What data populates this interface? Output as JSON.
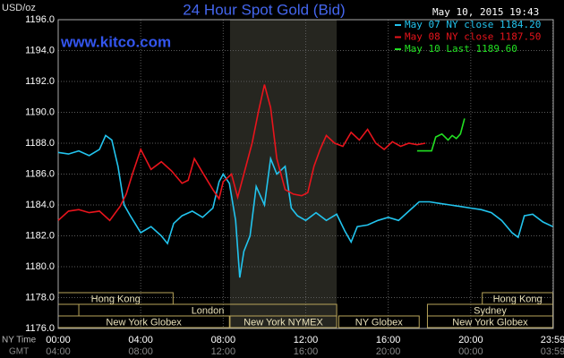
{
  "chart_data": {
    "type": "line",
    "title": "24 Hour Spot Gold (Bid)",
    "watermark": "www.kitco.com",
    "timestamp": "May 10, 2015 19:43",
    "ylabel": "USD/oz",
    "xlabel": "NY Time",
    "x2label": "GMT",
    "xlim": [
      0,
      24
    ],
    "ylim": [
      1176,
      1196
    ],
    "yticks": [
      {
        "value": 1176,
        "label": "1176.0"
      },
      {
        "value": 1178,
        "label": "1178.0"
      },
      {
        "value": 1180,
        "label": "1180.0"
      },
      {
        "value": 1182,
        "label": "1182.0"
      },
      {
        "value": 1184,
        "label": "1184.0"
      },
      {
        "value": 1186,
        "label": "1186.0"
      },
      {
        "value": 1188,
        "label": "1188.0"
      },
      {
        "value": 1190,
        "label": "1190.0"
      },
      {
        "value": 1192,
        "label": "1192.0"
      },
      {
        "value": 1194,
        "label": "1194.0"
      },
      {
        "value": 1196,
        "label": "1196.0"
      }
    ],
    "xticks": [
      {
        "value": 0,
        "label": "00:00"
      },
      {
        "value": 4,
        "label": "04:00"
      },
      {
        "value": 8,
        "label": "08:00"
      },
      {
        "value": 12,
        "label": "12:00"
      },
      {
        "value": 16,
        "label": "16:00"
      },
      {
        "value": 20,
        "label": "20:00"
      },
      {
        "value": 23.98,
        "label": "23:59"
      }
    ],
    "x2ticks": [
      {
        "value": 0,
        "label": "04:00"
      },
      {
        "value": 4,
        "label": "08:00"
      },
      {
        "value": 8,
        "label": "12:00"
      },
      {
        "value": 12,
        "label": "16:00"
      },
      {
        "value": 16,
        "label": "20:00"
      },
      {
        "value": 20,
        "label": "00:00"
      },
      {
        "value": 23.98,
        "label": "03:59"
      }
    ],
    "grid": true,
    "highlight": [
      8.33,
      13.5
    ],
    "sessions": [
      [
        {
          "label": "Hong Kong",
          "start": 0,
          "end": 5.57
        },
        {
          "label": "Hong Kong",
          "start": 20.56,
          "end": 23.98
        }
      ],
      [
        {
          "label": "London",
          "start": 1,
          "end": 13.5
        },
        {
          "label": "Sydney",
          "start": 17.9,
          "end": 23.98
        }
      ],
      [
        {
          "label": "New York Globex",
          "start": 0,
          "end": 8.3
        },
        {
          "label": "New York NYMEX",
          "start": 8.33,
          "end": 13.5
        },
        {
          "label": "NY Globex",
          "start": 13.6,
          "end": 17.5
        },
        {
          "label": "New York Globex",
          "start": 17.9,
          "end": 23.98
        }
      ]
    ],
    "series": [
      {
        "name": "May 07 NY close 1184.20",
        "color": "#22c4ee",
        "x": [
          0,
          0.5,
          1,
          1.5,
          2,
          2.3,
          2.6,
          2.9,
          3.2,
          3.5,
          4,
          4.5,
          5,
          5.3,
          5.6,
          6,
          6.5,
          7,
          7.5,
          7.8,
          8,
          8.3,
          8.6,
          8.8,
          9,
          9.3,
          9.6,
          10,
          10.3,
          10.6,
          11,
          11.3,
          11.6,
          12,
          12.5,
          13,
          13.5,
          13.9,
          14.2,
          14.5,
          15,
          15.5,
          16,
          16.5,
          17,
          17.5,
          18,
          18.5,
          19,
          19.5,
          20,
          20.5,
          21,
          21.5,
          22,
          22.3,
          22.6,
          23,
          23.5,
          23.98
        ],
        "values": [
          1187.4,
          1187.3,
          1187.5,
          1187.2,
          1187.6,
          1188.5,
          1188.2,
          1186.5,
          1184.0,
          1183.3,
          1182.2,
          1182.6,
          1182.0,
          1181.5,
          1182.8,
          1183.3,
          1183.6,
          1183.2,
          1183.8,
          1185.5,
          1186.0,
          1185.4,
          1183.0,
          1179.3,
          1181.0,
          1182.0,
          1185.2,
          1184.0,
          1187.0,
          1186.0,
          1186.5,
          1183.8,
          1183.3,
          1183.0,
          1183.5,
          1183.0,
          1183.4,
          1182.3,
          1181.6,
          1182.6,
          1182.7,
          1183.0,
          1183.2,
          1183.0,
          1183.6,
          1184.2,
          1184.2,
          1184.1,
          1184.0,
          1183.9,
          1183.8,
          1183.7,
          1183.5,
          1183.0,
          1182.2,
          1181.9,
          1183.3,
          1183.4,
          1182.9,
          1182.6
        ]
      },
      {
        "name": "May 08 NY close 1187.50",
        "color": "#e8141c",
        "x": [
          0,
          0.5,
          1,
          1.5,
          2,
          2.5,
          3,
          3.3,
          3.6,
          4,
          4.5,
          5,
          5.5,
          6,
          6.3,
          6.6,
          7,
          7.5,
          7.8,
          8,
          8.4,
          8.7,
          9,
          9.4,
          9.7,
          10,
          10.3,
          10.6,
          11,
          11.4,
          11.8,
          12.1,
          12.4,
          12.7,
          13,
          13.4,
          13.8,
          14.2,
          14.6,
          15,
          15.4,
          15.8,
          16.2,
          16.6,
          17,
          17.4,
          17.8
        ],
        "values": [
          1183.0,
          1183.6,
          1183.7,
          1183.5,
          1183.6,
          1183.0,
          1183.9,
          1184.7,
          1186.0,
          1187.6,
          1186.3,
          1186.8,
          1186.2,
          1185.4,
          1185.6,
          1187.0,
          1186.1,
          1185.0,
          1184.4,
          1185.5,
          1186.0,
          1184.5,
          1186.0,
          1188.0,
          1190.0,
          1191.8,
          1190.3,
          1187.0,
          1185.0,
          1184.7,
          1184.6,
          1184.8,
          1186.5,
          1187.6,
          1188.5,
          1188.0,
          1187.8,
          1188.7,
          1188.2,
          1188.9,
          1188.0,
          1187.6,
          1188.1,
          1187.8,
          1188.0,
          1187.9,
          1188.0
        ]
      },
      {
        "name": "May 10 Last 1189.60",
        "color": "#22e022",
        "x": [
          17.4,
          18.1,
          18.3,
          18.6,
          18.9,
          19.1,
          19.3,
          19.5,
          19.7
        ],
        "values": [
          1187.5,
          1187.5,
          1188.4,
          1188.6,
          1188.2,
          1188.5,
          1188.3,
          1188.6,
          1189.6
        ]
      }
    ]
  }
}
